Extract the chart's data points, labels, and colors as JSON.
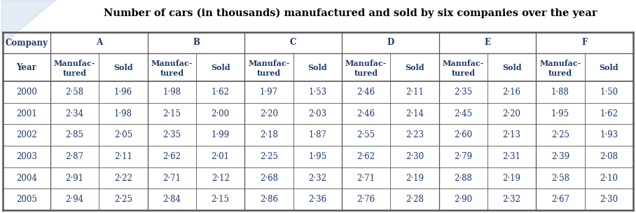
{
  "title": "Number of cars (in thousands) manufactured and sold by six companies over the year",
  "companies": [
    "A",
    "B",
    "C",
    "D",
    "E",
    "F"
  ],
  "years": [
    "2000",
    "2001",
    "2002",
    "2003",
    "2004",
    "2005"
  ],
  "data": {
    "A": {
      "manuf": [
        2.58,
        2.34,
        2.85,
        2.87,
        2.91,
        2.94
      ],
      "sold": [
        1.96,
        1.98,
        2.05,
        2.11,
        2.22,
        2.25
      ]
    },
    "B": {
      "manuf": [
        1.98,
        2.15,
        2.35,
        2.62,
        2.71,
        2.84
      ],
      "sold": [
        1.62,
        2.0,
        1.99,
        2.01,
        2.12,
        2.15
      ]
    },
    "C": {
      "manuf": [
        1.97,
        2.2,
        2.18,
        2.25,
        2.68,
        2.86
      ],
      "sold": [
        1.53,
        2.03,
        1.87,
        1.95,
        2.32,
        2.36
      ]
    },
    "D": {
      "manuf": [
        2.46,
        2.46,
        2.55,
        2.62,
        2.71,
        2.76
      ],
      "sold": [
        2.11,
        2.14,
        2.23,
        2.3,
        2.19,
        2.28
      ]
    },
    "E": {
      "manuf": [
        2.35,
        2.45,
        2.6,
        2.79,
        2.88,
        2.9
      ],
      "sold": [
        2.16,
        2.2,
        2.13,
        2.31,
        2.19,
        2.32
      ]
    },
    "F": {
      "manuf": [
        1.88,
        1.95,
        2.25,
        2.39,
        2.58,
        2.67
      ],
      "sold": [
        1.5,
        1.62,
        1.93,
        2.08,
        2.1,
        2.3
      ]
    }
  },
  "bg_color": "#ffffff",
  "border_color": "#555555",
  "text_color": "#1a3a6b",
  "title_color": "#000000",
  "title_fontsize": 10.5,
  "header_fontsize": 8.5,
  "data_fontsize": 8.5,
  "fig_width": 9.08,
  "fig_height": 3.04,
  "dpi": 100
}
